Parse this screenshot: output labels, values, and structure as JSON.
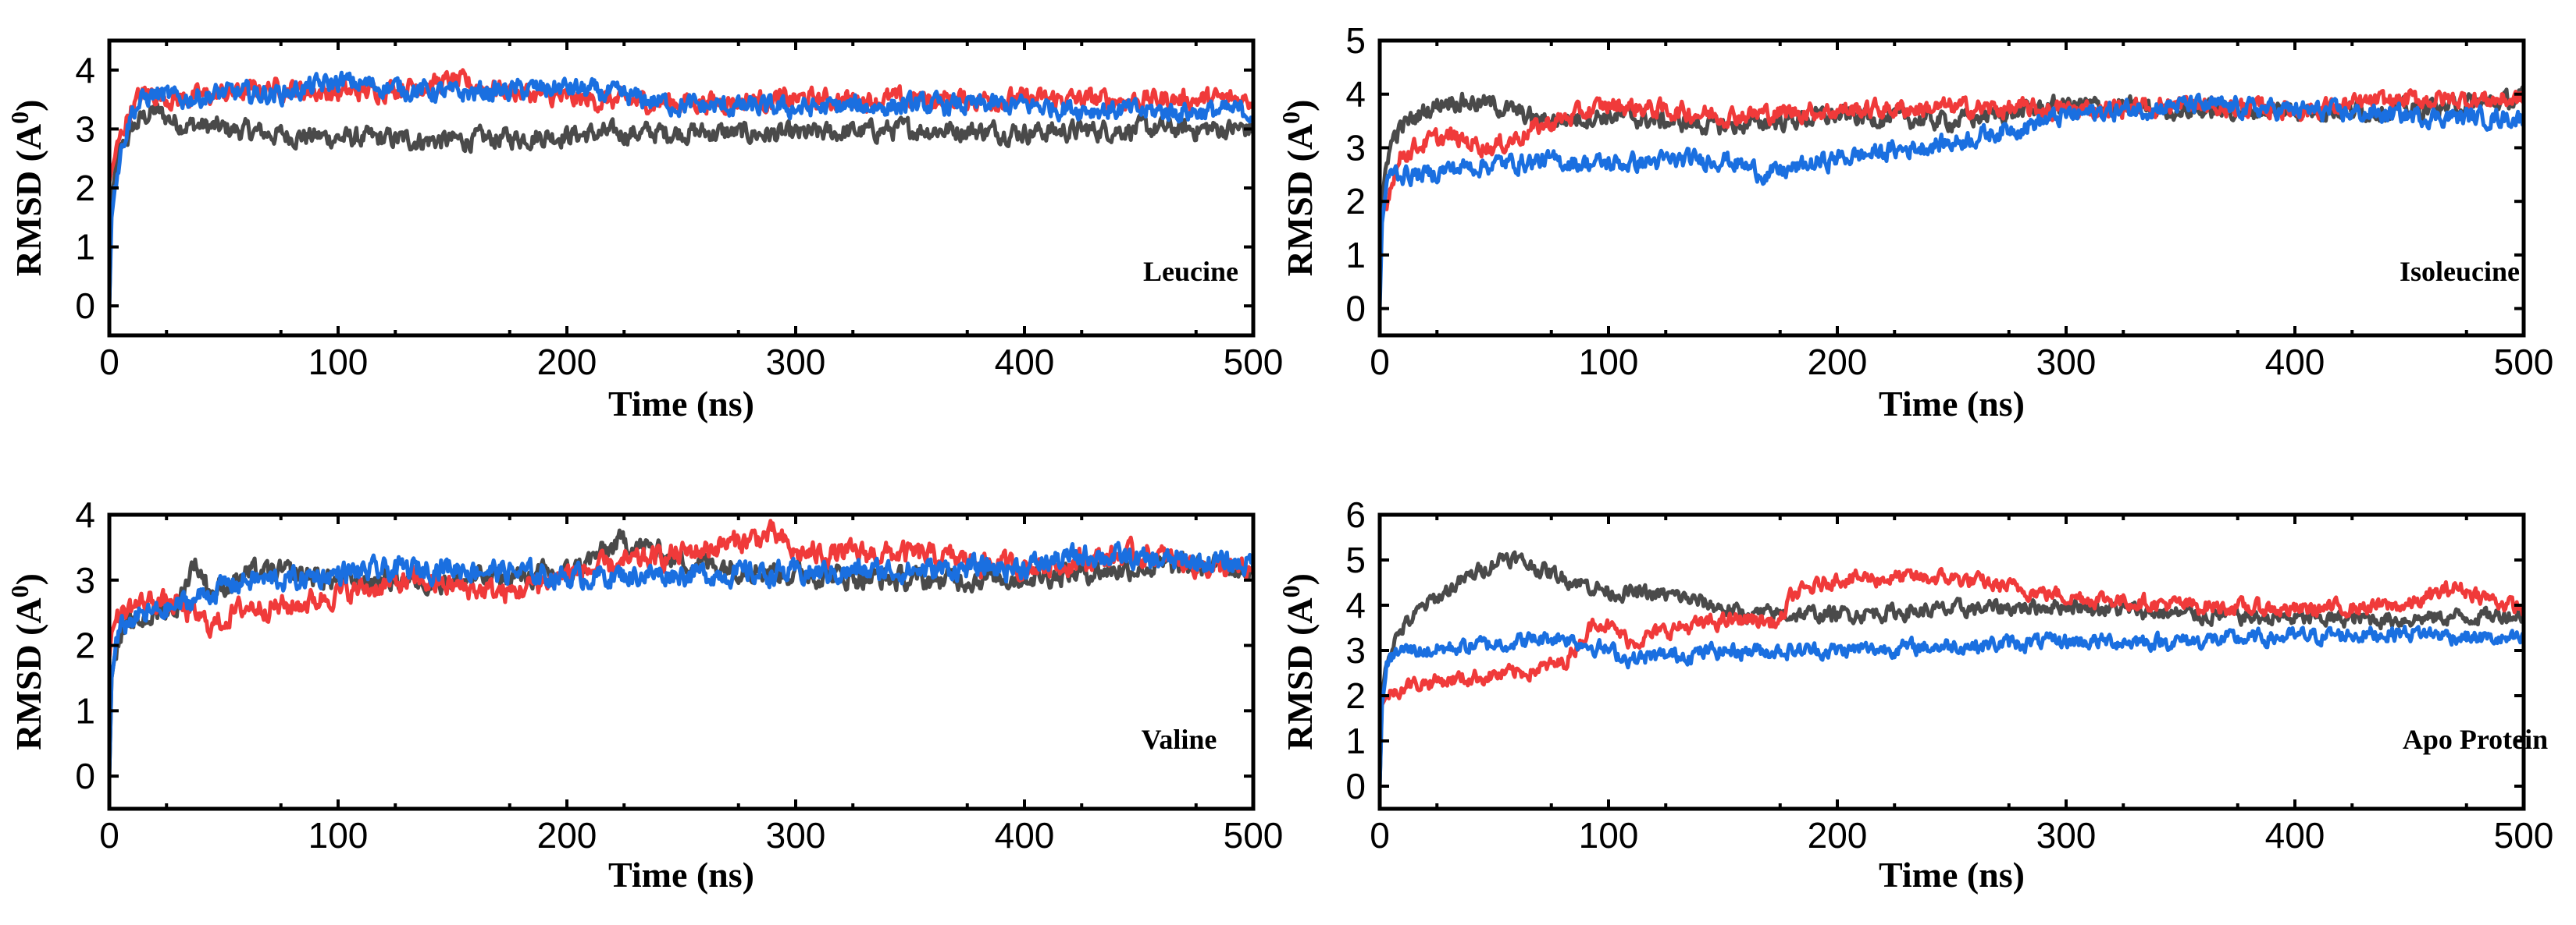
{
  "colors": {
    "gray": "#4a4a4a",
    "red": "#f03a3a",
    "blue": "#1a6fe0"
  },
  "chart_data": [
    {
      "type": "line",
      "title": "Leucine",
      "xlabel": "Time (ns)",
      "ylabel": "RMSD (A0)",
      "xlim": [
        0,
        500
      ],
      "ylim": [
        -0.5,
        4.5
      ],
      "xticks": [
        0,
        100,
        200,
        300,
        400,
        500
      ],
      "yticks": [
        0,
        1,
        2,
        3,
        4
      ],
      "xtick_labels": [
        "0",
        "100",
        "200",
        "300",
        "400",
        "500"
      ],
      "ytick_labels": [
        "0",
        "1",
        "2",
        "3",
        "4"
      ],
      "series": [
        {
          "name": "gray",
          "color": "#4a4a4a",
          "x": [
            0,
            1,
            3,
            6,
            10,
            15,
            20,
            30,
            50,
            75,
            100,
            150,
            200,
            250,
            300,
            350,
            400,
            450,
            500
          ],
          "y": [
            0,
            1.8,
            2.4,
            2.7,
            3.0,
            3.2,
            3.3,
            3.1,
            3.0,
            2.9,
            2.85,
            2.8,
            2.9,
            2.95,
            2.9,
            3.0,
            2.95,
            3.0,
            3.0
          ]
        },
        {
          "name": "red",
          "color": "#f03a3a",
          "x": [
            0,
            1,
            3,
            6,
            10,
            15,
            20,
            30,
            50,
            75,
            100,
            150,
            200,
            250,
            300,
            350,
            400,
            450,
            500
          ],
          "y": [
            2.1,
            2.3,
            2.6,
            3.0,
            3.4,
            3.6,
            3.6,
            3.5,
            3.6,
            3.7,
            3.6,
            3.8,
            3.5,
            3.45,
            3.5,
            3.5,
            3.5,
            3.5,
            3.5
          ]
        },
        {
          "name": "blue",
          "color": "#1a6fe0",
          "x": [
            0,
            1,
            3,
            6,
            10,
            15,
            20,
            30,
            50,
            75,
            100,
            150,
            200,
            250,
            300,
            350,
            400,
            450,
            500
          ],
          "y": [
            0,
            1.5,
            2.2,
            2.8,
            3.3,
            3.5,
            3.6,
            3.5,
            3.6,
            3.6,
            3.8,
            3.6,
            3.7,
            3.4,
            3.35,
            3.4,
            3.4,
            3.3,
            3.3
          ]
        }
      ]
    },
    {
      "type": "line",
      "title": "Isoleucine",
      "xlabel": "Time (ns)",
      "ylabel": "RMSD (A0)",
      "xlim": [
        0,
        500
      ],
      "ylim": [
        -0.5,
        5.0
      ],
      "xticks": [
        0,
        100,
        200,
        300,
        400,
        500
      ],
      "yticks": [
        0,
        1,
        2,
        3,
        4,
        5
      ],
      "xtick_labels": [
        "0",
        "100",
        "200",
        "300",
        "400",
        "500"
      ],
      "ytick_labels": [
        "0",
        "1",
        "2",
        "3",
        "4",
        "5"
      ],
      "series": [
        {
          "name": "gray",
          "color": "#4a4a4a",
          "x": [
            0,
            1,
            3,
            6,
            10,
            20,
            30,
            50,
            70,
            100,
            150,
            200,
            250,
            300,
            350,
            400,
            450,
            500
          ],
          "y": [
            0.5,
            2.0,
            2.8,
            3.2,
            3.4,
            3.7,
            3.9,
            3.8,
            3.5,
            3.6,
            3.4,
            3.6,
            3.5,
            3.8,
            3.7,
            3.7,
            3.7,
            3.9
          ]
        },
        {
          "name": "red",
          "color": "#f03a3a",
          "x": [
            0,
            1,
            3,
            6,
            10,
            20,
            30,
            50,
            70,
            100,
            150,
            200,
            250,
            300,
            350,
            400,
            450,
            500
          ],
          "y": [
            1.5,
            1.8,
            2.0,
            2.5,
            2.9,
            3.1,
            3.2,
            3.0,
            3.4,
            3.8,
            3.6,
            3.7,
            3.75,
            3.7,
            3.8,
            3.7,
            3.9,
            3.9
          ]
        },
        {
          "name": "blue",
          "color": "#1a6fe0",
          "x": [
            0,
            1,
            3,
            6,
            10,
            20,
            30,
            50,
            70,
            100,
            150,
            170,
            200,
            250,
            300,
            350,
            400,
            450,
            500
          ],
          "y": [
            0,
            1.6,
            2.3,
            2.6,
            2.5,
            2.5,
            2.6,
            2.7,
            2.75,
            2.7,
            2.8,
            2.5,
            2.8,
            3.1,
            3.6,
            3.8,
            3.7,
            3.6,
            3.55
          ]
        }
      ]
    },
    {
      "type": "line",
      "title": "Valine",
      "xlabel": "Time (ns)",
      "ylabel": "RMSD (A0)",
      "xlim": [
        0,
        500
      ],
      "ylim": [
        -0.5,
        4.0
      ],
      "xticks": [
        0,
        100,
        200,
        300,
        400,
        500
      ],
      "yticks": [
        0,
        1,
        2,
        3,
        4
      ],
      "xtick_labels": [
        "0",
        "100",
        "200",
        "300",
        "400",
        "500"
      ],
      "ytick_labels": [
        "0",
        "1",
        "2",
        "3",
        "4"
      ],
      "series": [
        {
          "name": "gray",
          "color": "#4a4a4a",
          "x": [
            0,
            1,
            3,
            6,
            10,
            20,
            30,
            37,
            45,
            60,
            80,
            100,
            150,
            200,
            225,
            250,
            300,
            350,
            400,
            450,
            500
          ],
          "y": [
            0,
            1.5,
            2.0,
            2.2,
            2.3,
            2.5,
            2.6,
            3.3,
            2.8,
            3.1,
            3.1,
            3.0,
            3.0,
            3.1,
            3.6,
            3.3,
            3.1,
            3.0,
            3.05,
            3.2,
            3.2
          ]
        },
        {
          "name": "red",
          "color": "#f03a3a",
          "x": [
            0,
            1,
            3,
            6,
            10,
            20,
            30,
            45,
            60,
            80,
            100,
            135,
            150,
            175,
            200,
            250,
            290,
            300,
            350,
            400,
            450,
            500
          ],
          "y": [
            1.8,
            2.2,
            2.4,
            2.5,
            2.6,
            2.7,
            2.6,
            2.3,
            2.6,
            2.6,
            2.8,
            3.0,
            2.9,
            2.8,
            3.1,
            3.4,
            3.7,
            3.4,
            3.4,
            3.2,
            3.4,
            3.1
          ]
        },
        {
          "name": "blue",
          "color": "#1a6fe0",
          "x": [
            0,
            1,
            3,
            6,
            10,
            20,
            30,
            50,
            60,
            80,
            100,
            150,
            200,
            250,
            300,
            350,
            400,
            430,
            450,
            500
          ],
          "y": [
            0,
            1.5,
            2.0,
            2.3,
            2.4,
            2.5,
            2.6,
            2.9,
            3.0,
            3.0,
            3.1,
            3.2,
            3.05,
            3.1,
            3.1,
            3.15,
            3.2,
            3.4,
            3.3,
            3.25
          ]
        }
      ]
    },
    {
      "type": "line",
      "title": "Apo Protein",
      "xlabel": "Time (ns)",
      "ylabel": "RMSD (A0)",
      "xlim": [
        0,
        500
      ],
      "ylim": [
        -0.5,
        6.0
      ],
      "xticks": [
        0,
        100,
        200,
        300,
        400,
        500
      ],
      "yticks": [
        0,
        1,
        2,
        3,
        4,
        5,
        6
      ],
      "xtick_labels": [
        "0",
        "100",
        "200",
        "300",
        "400",
        "500"
      ],
      "ytick_labels": [
        "0",
        "1",
        "2",
        "3",
        "4",
        "5",
        "6"
      ],
      "series": [
        {
          "name": "gray",
          "color": "#4a4a4a",
          "x": [
            0,
            1,
            3,
            6,
            10,
            20,
            35,
            55,
            75,
            100,
            130,
            160,
            200,
            250,
            300,
            350,
            400,
            450,
            500
          ],
          "y": [
            0,
            2.0,
            2.8,
            3.2,
            3.5,
            4.0,
            4.5,
            5.1,
            4.7,
            4.3,
            4.2,
            3.8,
            3.8,
            3.9,
            4.0,
            3.8,
            3.7,
            3.7,
            3.8
          ]
        },
        {
          "name": "red",
          "color": "#f03a3a",
          "x": [
            0,
            1,
            3,
            6,
            10,
            20,
            40,
            60,
            80,
            95,
            110,
            130,
            160,
            175,
            180,
            200,
            250,
            300,
            350,
            400,
            450,
            470,
            500
          ],
          "y": [
            1.5,
            1.8,
            2.0,
            2.1,
            2.2,
            2.3,
            2.4,
            2.5,
            2.7,
            3.7,
            3.2,
            3.5,
            3.7,
            3.6,
            4.2,
            4.6,
            4.6,
            4.2,
            4.0,
            3.9,
            4.0,
            4.4,
            3.9
          ]
        },
        {
          "name": "blue",
          "color": "#1a6fe0",
          "x": [
            0,
            1,
            3,
            6,
            10,
            20,
            40,
            60,
            80,
            100,
            110,
            150,
            200,
            250,
            300,
            350,
            400,
            450,
            500
          ],
          "y": [
            0,
            1.8,
            2.6,
            2.9,
            3.0,
            3.0,
            3.1,
            3.2,
            3.3,
            3.0,
            2.8,
            3.0,
            3.0,
            3.1,
            3.2,
            3.2,
            3.3,
            3.4,
            3.2
          ]
        }
      ]
    }
  ]
}
